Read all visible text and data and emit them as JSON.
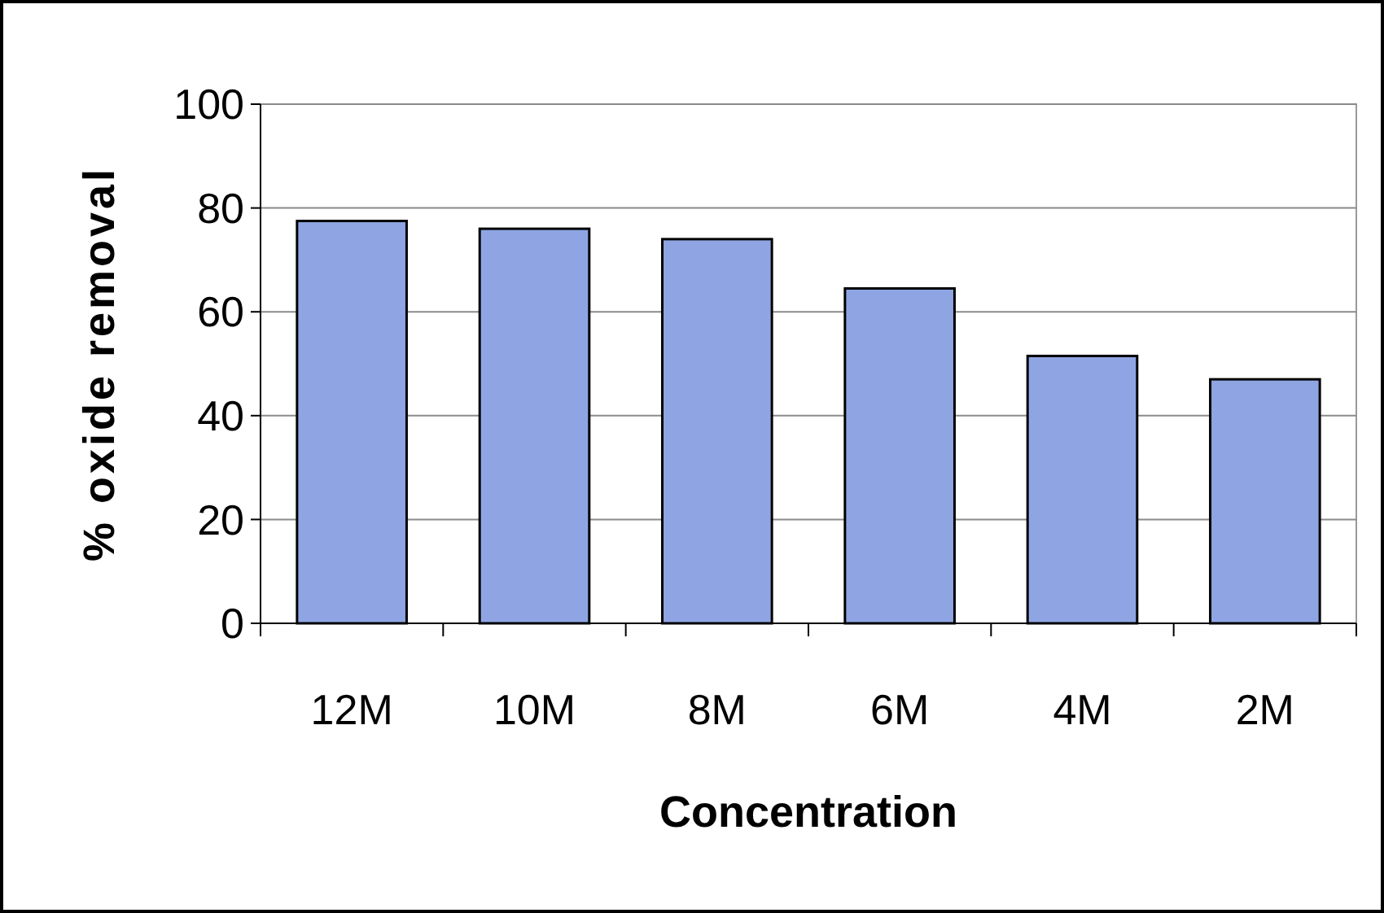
{
  "chart_data": {
    "type": "bar",
    "xlabel": "Concentration",
    "ylabel": "% oxide removal",
    "categories": [
      "12M",
      "10M",
      "8M",
      "6M",
      "4M",
      "2M"
    ],
    "values": [
      77.5,
      76,
      74,
      64.5,
      51.5,
      47
    ],
    "color": "#8fa5e3",
    "ylim": [
      0,
      100
    ],
    "yticks": [
      0,
      20,
      40,
      60,
      80,
      100
    ],
    "grid": "y"
  }
}
